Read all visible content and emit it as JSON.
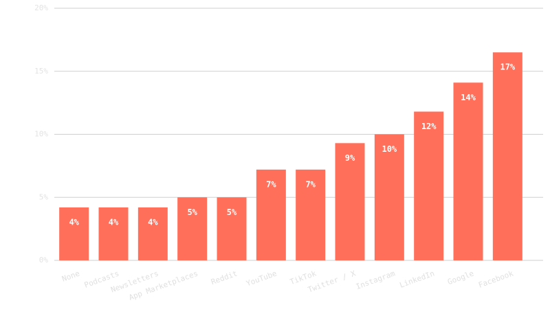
{
  "chart_data": {
    "type": "bar",
    "categories": [
      "None",
      "Podcasts",
      "Newsletters",
      "App Marketplaces",
      "Reddit",
      "YouTube",
      "TikTok",
      "Twitter / X",
      "Instagram",
      "LinkedIn",
      "Google",
      "Facebook"
    ],
    "values": [
      4.2,
      4.2,
      4.2,
      5.0,
      5.0,
      7.2,
      7.2,
      9.3,
      10.0,
      11.8,
      14.1,
      16.5
    ],
    "value_labels": [
      "4%",
      "4%",
      "4%",
      "5%",
      "5%",
      "7%",
      "7%",
      "9%",
      "10%",
      "12%",
      "14%",
      "17%"
    ],
    "color": "#ff6f5a",
    "ylim": [
      0,
      20
    ],
    "yticks": [
      {
        "value": 0,
        "label": "0%"
      },
      {
        "value": 5,
        "label": "5%"
      },
      {
        "value": 10,
        "label": "10%"
      },
      {
        "value": 15,
        "label": "15%"
      },
      {
        "value": 20,
        "label": "20%"
      }
    ],
    "grid": true
  }
}
